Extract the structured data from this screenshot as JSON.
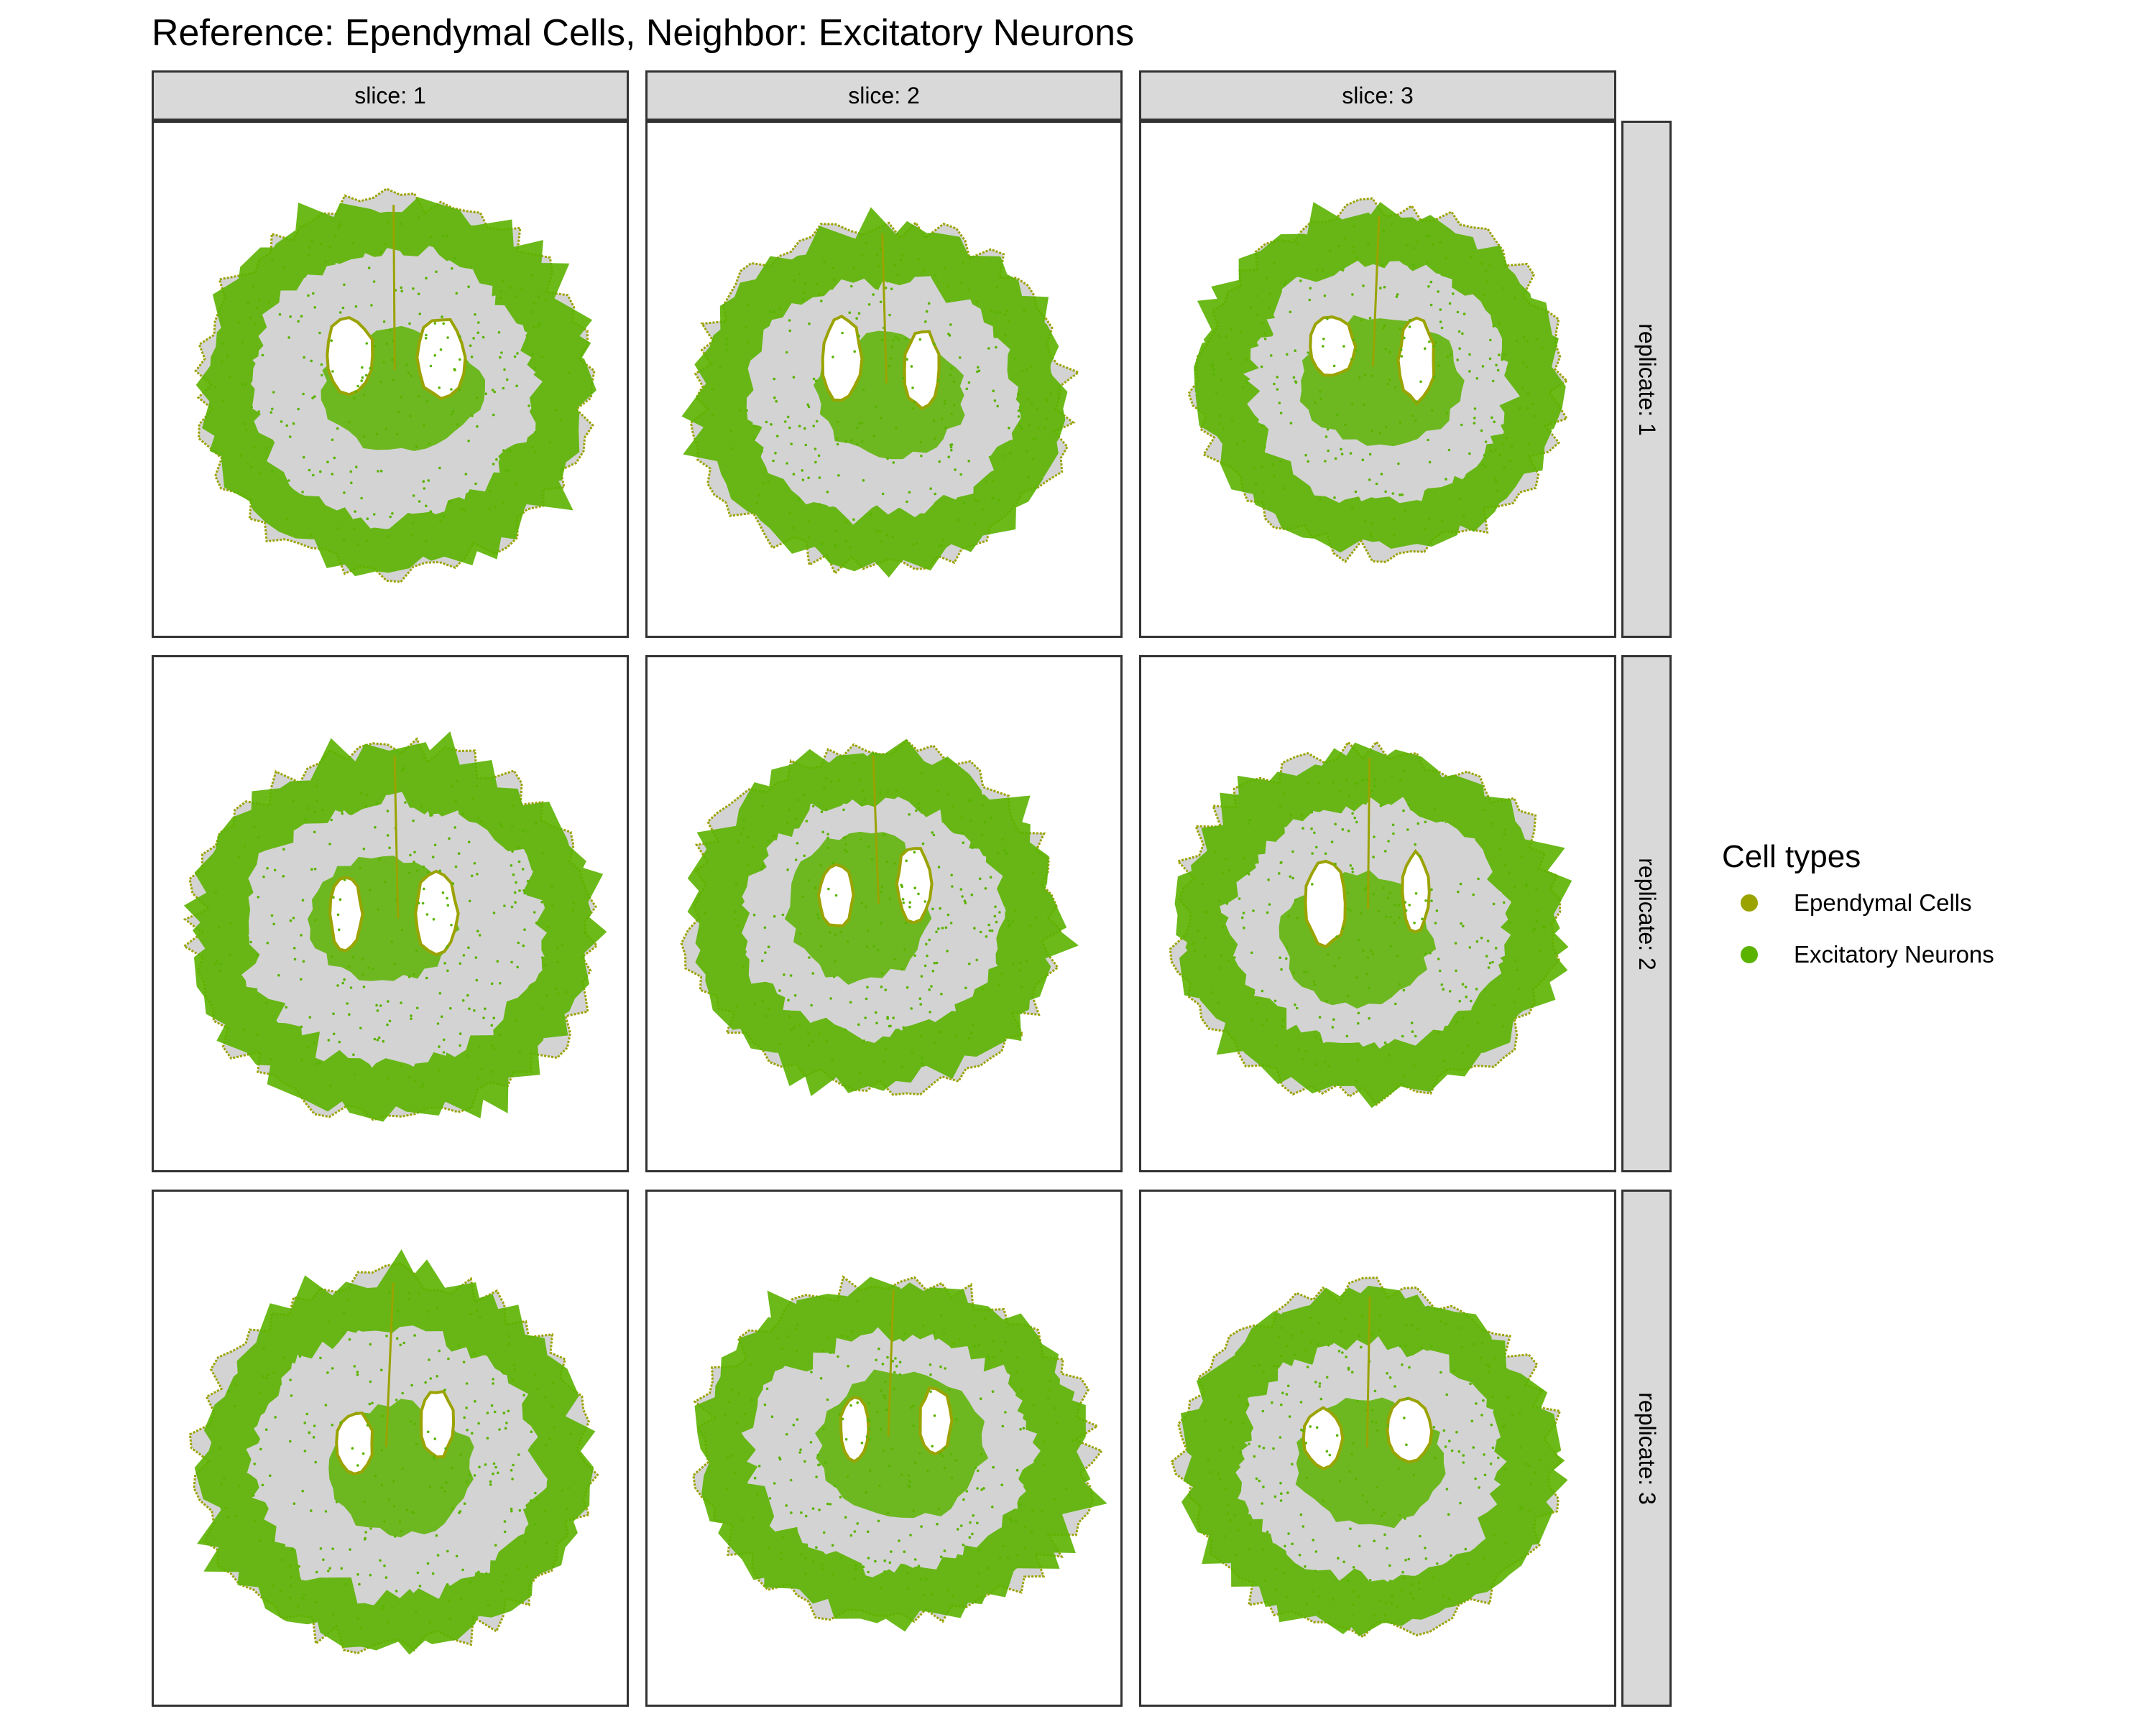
{
  "chart_data": {
    "type": "scatter",
    "title": "Reference: Ependymal Cells, Neighbor: Excitatory Neurons",
    "facet_columns": [
      "slice: 1",
      "slice: 2",
      "slice: 3"
    ],
    "facet_rows": [
      "replicate: 1",
      "replicate: 2",
      "replicate: 3"
    ],
    "background_color": "#d3d3d3",
    "legend": {
      "title": "Cell types",
      "placement": "right",
      "entries": [
        {
          "name": "Ependymal Cells",
          "color": "#9aa300"
        },
        {
          "name": "Excitatory Neurons",
          "color": "#5bb300"
        }
      ]
    },
    "axes_visible": false,
    "grid": false
  }
}
